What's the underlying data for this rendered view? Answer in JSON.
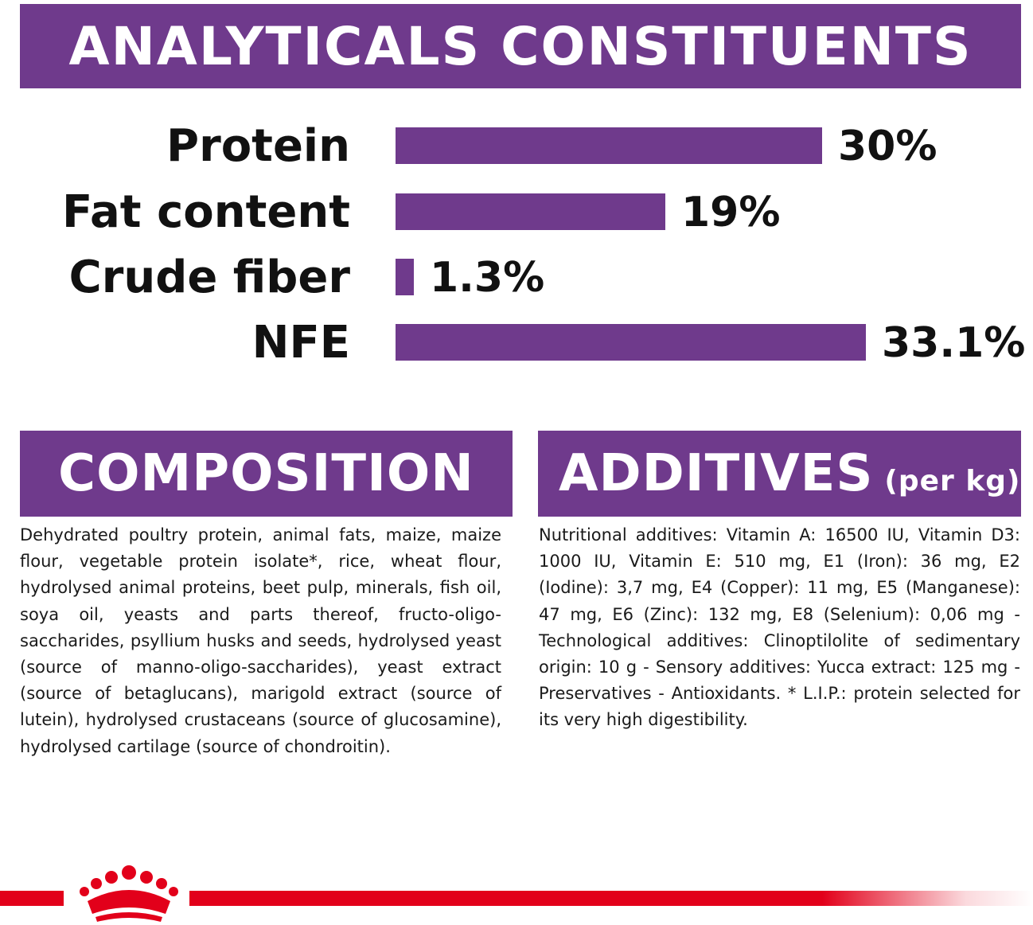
{
  "header": {
    "title": "ANALYTICALS CONSTITUENTS"
  },
  "analyticals": [
    {
      "label": "Protein",
      "value_text": "30%",
      "value": 30
    },
    {
      "label": "Fat content",
      "value_text": "19%",
      "value": 19
    },
    {
      "label": "Crude fiber",
      "value_text": "1.3%",
      "value": 1.3
    },
    {
      "label": "NFE",
      "value_text": "33.1%",
      "value": 33.1
    }
  ],
  "composition": {
    "title": "COMPOSITION",
    "text": "Dehydrated poultry protein, animal fats, maize, maize flour, vegetable protein isolate*, rice, wheat flour, hydrolysed animal proteins, beet pulp, minerals, fish oil, soya oil, yeasts and parts thereof, fructo-oligo-saccharides, psyllium husks and seeds, hydrolysed yeast (source of manno-oligo-saccharides), yeast extract (source of betaglucans), marigold extract (source of lutein), hydrolysed crustaceans (source of glucosamine), hydrolysed cartilage (source of chondroitin)."
  },
  "additives": {
    "title": "ADDITIVES",
    "subtitle": "(per kg)",
    "text": "Nutritional additives: Vitamin A: 16500 IU, Vitamin D3: 1000 IU, Vitamin E: 510 mg, E1 (Iron): 36 mg, E2 (Iodine): 3,7 mg, E4 (Copper): 11 mg, E5 (Manganese): 47 mg, E6 (Zinc): 132 mg, E8 (Selenium): 0,06 mg - Technological additives: Clinoptilolite of sedimentary origin: 10 g - Sensory additives: Yucca extract: 125 mg - Preservatives - Antioxidants. * L.I.P.: protein selected for its very high digestibility."
  },
  "colors": {
    "purple": "#6f3a8c",
    "red": "#e2001a"
  },
  "icons": {
    "brand": "crown-logo-icon"
  }
}
